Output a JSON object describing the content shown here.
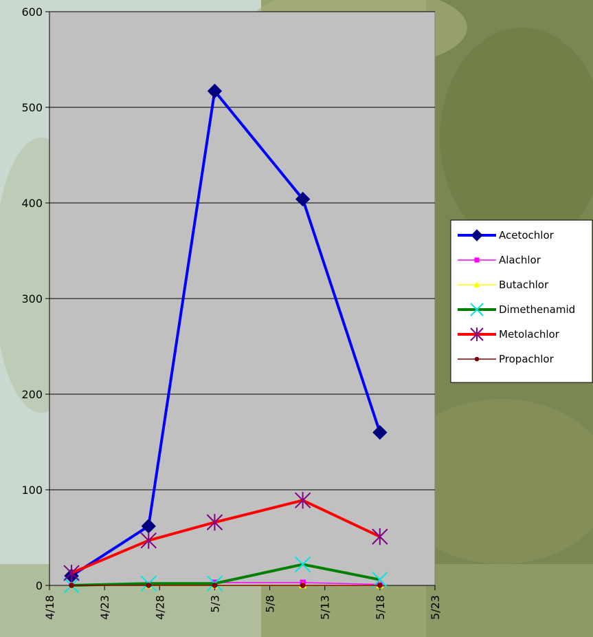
{
  "chart_data": {
    "type": "line",
    "title": "",
    "xlabel": "",
    "ylabel": "",
    "ylim": [
      0,
      600
    ],
    "xlim": [
      "2025-04-18",
      "2025-05-23"
    ],
    "x_ticks": [
      "4/18",
      "4/23",
      "4/28",
      "5/3",
      "5/8",
      "5/13",
      "5/18",
      "5/23"
    ],
    "y_ticks": [
      0,
      100,
      200,
      300,
      400,
      500,
      600
    ],
    "grid": "horizontal",
    "legend_position": "right",
    "x": [
      "2025-04-20",
      "2025-04-27",
      "2025-05-03",
      "2025-05-11",
      "2025-05-18"
    ],
    "series": [
      {
        "name": "Acetochlor",
        "values": [
          10,
          62,
          517,
          404,
          160
        ],
        "color": "#0000ff",
        "marker": "diamond",
        "marker_color": "#000080",
        "line_width": 4
      },
      {
        "name": "Alachlor",
        "values": [
          0,
          1,
          3,
          3,
          1
        ],
        "color": "#ff00ff",
        "marker": "square",
        "marker_color": "#ff00ff",
        "line_width": 1.5
      },
      {
        "name": "Butachlor",
        "values": [
          0,
          0,
          0,
          0,
          0
        ],
        "color": "#ffff00",
        "marker": "triangle",
        "marker_color": "#ffff00",
        "line_width": 1.5
      },
      {
        "name": "Dimethenamid",
        "values": [
          0,
          2,
          2,
          22,
          6
        ],
        "color": "#008000",
        "marker": "x",
        "marker_color": "#00e5e5",
        "line_width": 4
      },
      {
        "name": "Metolachlor",
        "values": [
          13,
          47,
          66,
          89,
          51
        ],
        "color": "#ff0000",
        "marker": "asterisk",
        "marker_color": "#800080",
        "line_width": 4
      },
      {
        "name": "Propachlor",
        "values": [
          0,
          0,
          0,
          0,
          0
        ],
        "color": "#800000",
        "marker": "circle",
        "marker_color": "#800000",
        "line_width": 1.5
      }
    ]
  }
}
